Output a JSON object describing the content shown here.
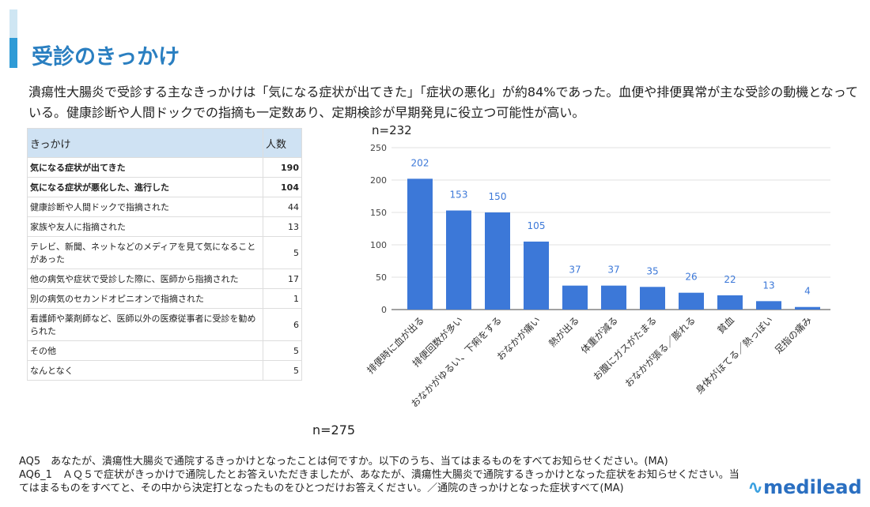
{
  "title": "受診のきっかけ",
  "lead": "潰瘍性大腸炎で受診する主なきっかけは「気になる症状が出てきた」「症状の悪化」が約84%であった。血便や排便異常が主な受診の動機となっている。健康診断や人間ドックでの指摘も一定数あり、定期検診が早期発見に役立つ可能性が高い。",
  "table": {
    "headers": [
      "きっかけ",
      "人数"
    ],
    "rows": [
      {
        "label": "気になる症状が出てきた",
        "value": "190",
        "bold": true
      },
      {
        "label": "気になる症状が悪化した、進行した",
        "value": "104",
        "bold": true
      },
      {
        "label": "健康診断や人間ドックで指摘された",
        "value": "44"
      },
      {
        "label": "家族や友人に指摘された",
        "value": "13"
      },
      {
        "label": "テレビ、新聞、ネットなどのメディアを見て気になることがあった",
        "value": "5"
      },
      {
        "label": "他の病気や症状で受診した際に、医師から指摘された",
        "value": "17"
      },
      {
        "label": "別の病気のセカンドオピニオンで指摘された",
        "value": "1"
      },
      {
        "label": "看護師や薬剤師など、医師以外の医療従事者に受診を勧められた",
        "value": "6"
      },
      {
        "label": "その他",
        "value": "5"
      },
      {
        "label": "なんとなく",
        "value": "5"
      }
    ],
    "n": "n=275"
  },
  "chart_data": {
    "type": "bar",
    "n": "n=232",
    "categories": [
      "排便時に血が出る",
      "排便回数が多い",
      "おなかがゆるい、下痢をする",
      "おなかが痛い",
      "熱が出る",
      "体重が減る",
      "お腹にガスがたまる",
      "おなかが張る／膨れる",
      "貧血",
      "身体がほてる／熱っぽい",
      "足指の痛み"
    ],
    "values": [
      202,
      153,
      150,
      105,
      37,
      37,
      35,
      26,
      22,
      13,
      4
    ],
    "ylim": [
      0,
      250
    ],
    "yticks": [
      0,
      50,
      100,
      150,
      200,
      250
    ],
    "color": "#3c78d8",
    "label_color": "#3c78d8"
  },
  "notes": [
    "AQ5　あなたが、潰瘍性大腸炎で通院するきっかけとなったことは何ですか。以下のうち、当てはまるものをすべてお知らせください。(MA)",
    "AQ6_1　ＡＱ５で症状がきっかけで通院したとお答えいただきましたが、あなたが、潰瘍性大腸炎で通院するきっかけとなった症状をお知らせください。当てはまるものをすべてと、その中から決定打となったものをひとつだけお答えください。／通院のきっかけとなった症状すべて(MA)"
  ],
  "logo": "medilead"
}
